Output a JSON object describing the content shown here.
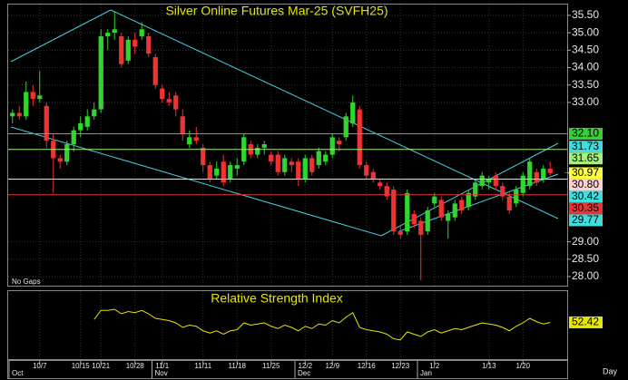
{
  "chart_data": [
    {
      "type": "candlestick",
      "title": "Silver Online Futures Mar-25 (SVFH25)",
      "footnote": "No Gaps",
      "period": "Day",
      "categories": [
        null,
        null,
        null,
        null,
        "10/7",
        null,
        null,
        null,
        null,
        null,
        "10/15",
        null,
        null,
        "10/21",
        null,
        null,
        null,
        null,
        "10/28",
        null,
        null,
        null,
        "11/1",
        null,
        null,
        null,
        null,
        null,
        "11/11",
        null,
        null,
        null,
        null,
        "11/18",
        null,
        null,
        null,
        null,
        "11/25",
        null,
        null,
        null,
        null,
        "12/2",
        null,
        null,
        null,
        "12/9",
        null,
        null,
        null,
        null,
        "12/16",
        null,
        null,
        null,
        null,
        "12/23",
        null,
        null,
        null,
        null,
        "1/2",
        null,
        null,
        null,
        null,
        null,
        null,
        null,
        "1/13",
        null,
        null,
        null,
        null,
        "1/20",
        null,
        null,
        null,
        null
      ],
      "months": [
        "Oct",
        null,
        null,
        null,
        null,
        null,
        null,
        null,
        null,
        null,
        null,
        null,
        null,
        null,
        null,
        null,
        null,
        null,
        null,
        null,
        null,
        "Nov",
        null,
        null,
        null,
        null,
        null,
        null,
        null,
        null,
        null,
        null,
        null,
        null,
        null,
        null,
        null,
        null,
        null,
        null,
        null,
        null,
        "Dec",
        null,
        null,
        null,
        null,
        null,
        null,
        null,
        null,
        null,
        null,
        null,
        null,
        null,
        null,
        null,
        null,
        null,
        "Jan",
        null,
        null,
        null,
        null,
        null,
        null,
        null,
        null,
        null,
        null,
        null,
        null,
        null,
        null,
        null,
        null,
        null
      ],
      "open": [
        32.6,
        32.7,
        32.6,
        33.3,
        33.1,
        32.9,
        31.9,
        31.4,
        31.3,
        31.8,
        32.2,
        32.3,
        32.6,
        32.8,
        34.9,
        35.0,
        34.9,
        34.2,
        34.8,
        34.9,
        34.9,
        34.3,
        33.4,
        33.1,
        33.2,
        32.6,
        31.8,
        32.0,
        31.7,
        31.2,
        30.9,
        31.3,
        30.8,
        31.1,
        31.3,
        31.8,
        31.5,
        31.7,
        31.5,
        31.5,
        31.0,
        31.3,
        31.3,
        30.8,
        31.4,
        31.2,
        31.3,
        31.5,
        31.9,
        32.0,
        32.4,
        32.8,
        31.2,
        31.0,
        30.7,
        30.6,
        30.5,
        29.3,
        29.3,
        29.8,
        29.6,
        29.3,
        30.1,
        30.2,
        29.6,
        29.7,
        30.2,
        30.0,
        30.3,
        30.6,
        30.7,
        30.9,
        30.6,
        30.3,
        30.1,
        30.4,
        30.6,
        31.0,
        30.8,
        31.1
      ],
      "high": [
        32.8,
        32.9,
        33.6,
        33.5,
        33.9,
        33.0,
        32.1,
        31.5,
        31.9,
        32.3,
        32.6,
        32.8,
        33.0,
        35.1,
        35.1,
        35.6,
        35.0,
        34.9,
        35.0,
        35.3,
        35.0,
        34.4,
        33.5,
        33.3,
        33.3,
        32.8,
        32.2,
        32.3,
        31.8,
        31.3,
        31.3,
        31.5,
        31.3,
        31.4,
        32.1,
        31.9,
        31.8,
        31.9,
        31.6,
        31.6,
        31.5,
        31.4,
        31.4,
        31.5,
        31.5,
        31.7,
        31.6,
        32.1,
        32.0,
        32.7,
        33.2,
        32.9,
        31.3,
        31.1,
        30.8,
        30.7,
        30.6,
        29.5,
        30.5,
        29.9,
        29.7,
        30.0,
        30.4,
        30.3,
        29.9,
        30.2,
        30.3,
        30.5,
        30.8,
        31.0,
        30.9,
        31.0,
        30.7,
        30.4,
        30.6,
        31.0,
        31.4,
        31.1,
        31.2,
        31.3
      ],
      "low": [
        32.4,
        32.5,
        32.5,
        32.9,
        33.0,
        31.7,
        30.4,
        31.1,
        31.2,
        31.6,
        32.0,
        32.2,
        32.5,
        32.7,
        34.5,
        34.8,
        34.0,
        34.1,
        34.4,
        34.8,
        34.3,
        33.4,
        33.0,
        32.9,
        32.6,
        31.9,
        31.7,
        31.8,
        31.0,
        30.7,
        30.8,
        30.6,
        30.7,
        30.9,
        31.2,
        31.4,
        31.4,
        31.5,
        31.2,
        30.9,
        30.9,
        31.0,
        30.6,
        30.7,
        30.9,
        31.1,
        31.2,
        31.4,
        31.6,
        31.9,
        32.3,
        31.1,
        30.8,
        30.7,
        30.5,
        30.2,
        29.2,
        29.1,
        29.2,
        29.4,
        27.9,
        29.2,
        30.0,
        29.6,
        29.1,
        29.6,
        29.8,
        29.9,
        30.2,
        30.5,
        30.5,
        30.5,
        30.2,
        29.8,
        30.0,
        30.3,
        30.5,
        30.6,
        30.7,
        30.9
      ],
      "close": [
        32.7,
        32.6,
        33.3,
        33.1,
        33.2,
        31.9,
        31.4,
        31.3,
        31.8,
        32.2,
        32.4,
        32.6,
        32.8,
        34.9,
        35.0,
        35.1,
        34.1,
        34.8,
        34.6,
        35.1,
        34.4,
        33.5,
        33.1,
        33.0,
        32.8,
        32.1,
        32.0,
        31.9,
        31.2,
        30.8,
        31.1,
        30.7,
        31.2,
        31.2,
        32.0,
        31.5,
        31.7,
        31.8,
        31.3,
        31.0,
        31.4,
        31.2,
        30.8,
        31.4,
        31.0,
        31.6,
        31.5,
        32.0,
        31.8,
        32.6,
        33.0,
        31.2,
        30.9,
        30.8,
        30.6,
        30.3,
        29.3,
        29.2,
        30.4,
        29.5,
        29.2,
        29.9,
        30.3,
        29.7,
        29.8,
        30.1,
        29.9,
        30.4,
        30.7,
        30.9,
        30.8,
        30.6,
        30.3,
        29.9,
        30.5,
        30.9,
        31.3,
        30.7,
        31.1,
        30.97
      ],
      "up_color": "#2ed62e",
      "down_color": "#f03232",
      "ylim": [
        27.74,
        35.81
      ],
      "yticks": [
        {
          "value": 35.5,
          "label": "35.50"
        },
        {
          "value": 35,
          "label": "35.00"
        },
        {
          "value": 34.5,
          "label": "34.50"
        },
        {
          "value": 34,
          "label": "34.00"
        },
        {
          "value": 33.5,
          "label": "33.50"
        },
        {
          "value": 33,
          "label": "33.00"
        },
        {
          "value": 29,
          "label": "29.00"
        },
        {
          "value": 28.5,
          "label": "28.50"
        },
        {
          "value": 28,
          "label": "28.00"
        }
      ],
      "grid": true,
      "price_labels": [
        {
          "value": 32.1,
          "label": "32.10",
          "color": "#34d134",
          "line": true
        },
        {
          "value": 31.73,
          "label": "31.73",
          "color": "#3ddede",
          "line": false
        },
        {
          "value": 31.65,
          "label": "31.65",
          "color": "#a6f07a",
          "line": true
        },
        {
          "value": 30.97,
          "label": "30.97",
          "color": "#ffff3a",
          "line": false
        },
        {
          "value": 30.8,
          "label": "30.80",
          "color": "#ffd0d0",
          "line": true
        },
        {
          "value": 30.42,
          "label": "30.42",
          "color": "#3ddede",
          "line": false
        },
        {
          "value": 30.35,
          "label": "30.35",
          "color": "#e83434",
          "line": true
        },
        {
          "value": 29.77,
          "label": "29.77",
          "color": "#3ddede",
          "line": false
        }
      ]
    },
    {
      "type": "line",
      "title": "Relative Strength Index",
      "values": [
        null,
        null,
        null,
        null,
        null,
        null,
        null,
        null,
        null,
        null,
        null,
        null,
        55,
        63,
        63,
        64,
        60,
        62,
        61,
        63,
        60,
        56,
        55,
        54,
        52,
        48,
        50,
        49,
        45,
        43,
        45,
        42,
        45,
        46,
        52,
        50,
        51,
        52,
        49,
        47,
        50,
        48,
        45,
        49,
        47,
        51,
        50,
        54,
        52,
        57,
        61,
        48,
        46,
        45,
        44,
        42,
        38,
        37,
        44,
        42,
        40,
        44,
        46,
        43,
        45,
        47,
        46,
        48,
        50,
        52,
        51,
        50,
        48,
        45,
        49,
        52,
        56,
        53,
        51,
        52.42
      ],
      "color": "#e6e600",
      "ylim": [
        20,
        80
      ],
      "value_label": {
        "value": 52.42,
        "label": "52.42",
        "color": "#e6e600"
      }
    }
  ]
}
